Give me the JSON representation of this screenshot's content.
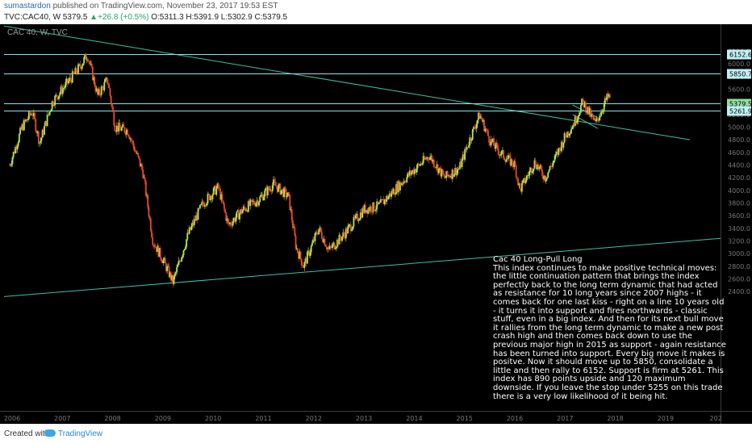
{
  "header": {
    "author": "sumastardon",
    "published": " published on TradingView.com, November 23, 2017 19:53 EST",
    "symbol": "TVC:CAC40, W",
    "last": "5379.5",
    "change": "+26.8 (+0.5%)",
    "open_label": "O:",
    "open": "5311.3",
    "high_label": "H:",
    "high": "5391.9",
    "low_label": "L:",
    "low": "5302.9",
    "close_label": "C:",
    "close": "5379.5"
  },
  "chart_label": "CAC 40, W, TVC",
  "colors": {
    "background": "#000000",
    "up": "#b5e853",
    "down": "#e84a2a",
    "line": "#3fbfa5",
    "level": "#8fe3e8"
  },
  "chart_data": {
    "type": "candlestick",
    "title": "CAC 40, W, TVC",
    "x_ticks": [
      "2006",
      "2007",
      "2008",
      "2009",
      "2010",
      "2011",
      "2012",
      "2013",
      "2014",
      "2015",
      "2016",
      "2017",
      "2018",
      "2019",
      "202"
    ],
    "y_ticks": [
      2400,
      2600,
      2800,
      3000,
      3200,
      3400,
      3600,
      3800,
      4000,
      4200,
      4400,
      4600,
      4800,
      5000,
      5200,
      5400,
      5600,
      5800,
      6000,
      6200
    ],
    "ylim": [
      2300,
      6340
    ],
    "price_tags": [
      {
        "label": "6152.6",
        "value": 6152.6
      },
      {
        "label": "5850.7",
        "value": 5850.7
      },
      {
        "label": "5379.5",
        "value": 5379.5
      },
      {
        "label": "5261.9",
        "value": 5261.9
      }
    ],
    "path": [
      [
        2005.95,
        4400
      ],
      [
        2006.2,
        5000
      ],
      [
        2006.4,
        5250
      ],
      [
        2006.55,
        4750
      ],
      [
        2006.8,
        5400
      ],
      [
        2007.0,
        5600
      ],
      [
        2007.3,
        5900
      ],
      [
        2007.5,
        6150
      ],
      [
        2007.7,
        5500
      ],
      [
        2007.9,
        5750
      ],
      [
        2008.05,
        5000
      ],
      [
        2008.3,
        4950
      ],
      [
        2008.6,
        4300
      ],
      [
        2008.8,
        3200
      ],
      [
        2009.0,
        2900
      ],
      [
        2009.2,
        2550
      ],
      [
        2009.5,
        3300
      ],
      [
        2009.8,
        3800
      ],
      [
        2010.1,
        4050
      ],
      [
        2010.3,
        3450
      ],
      [
        2010.6,
        3700
      ],
      [
        2010.9,
        3850
      ],
      [
        2011.2,
        4100
      ],
      [
        2011.5,
        3900
      ],
      [
        2011.65,
        3100
      ],
      [
        2011.8,
        2800
      ],
      [
        2012.1,
        3400
      ],
      [
        2012.3,
        3050
      ],
      [
        2012.6,
        3300
      ],
      [
        2013.0,
        3700
      ],
      [
        2013.3,
        3750
      ],
      [
        2013.6,
        4000
      ],
      [
        2013.9,
        4250
      ],
      [
        2014.3,
        4550
      ],
      [
        2014.6,
        4200
      ],
      [
        2014.9,
        4350
      ],
      [
        2015.1,
        4800
      ],
      [
        2015.3,
        5200
      ],
      [
        2015.5,
        4800
      ],
      [
        2015.7,
        4600
      ],
      [
        2016.0,
        4400
      ],
      [
        2016.1,
        4000
      ],
      [
        2016.4,
        4450
      ],
      [
        2016.6,
        4200
      ],
      [
        2016.8,
        4500
      ],
      [
        2017.0,
        4850
      ],
      [
        2017.2,
        5100
      ],
      [
        2017.35,
        5400
      ],
      [
        2017.5,
        5200
      ],
      [
        2017.6,
        5050
      ],
      [
        2017.8,
        5400
      ],
      [
        2017.87,
        5500
      ],
      [
        2017.9,
        5379.5
      ]
    ],
    "annotation": {
      "title": "Cac 40   Long-Pull Long",
      "text": "This index continues to make positive technical moves: the little continuation pattern that brings the index perfectly back to the long term dynamic that had acted as resistance for 10 long years since 2007 highs - it comes back for one last kiss - right on a line 10 years old - it turns it into support and fires northwards - classic stuff, even in a big index. And then for its next bull move it rallies from the long term dynamic to make a new post crash high and then comes back down to use the previous major high in 2015 as support - again resistance has been turned into support. Every big move it makes is positve. Now it should move up to 5850, consolidate a little and then rally to 6152. Support is firm at 5261. This index has 890 points upside and 120 maximum downside. If you leave the stop under 5255 on this trade there is a very low likelihood of it being hit."
    }
  },
  "footer": {
    "created_with": "Created with",
    "brand": "TradingView"
  }
}
